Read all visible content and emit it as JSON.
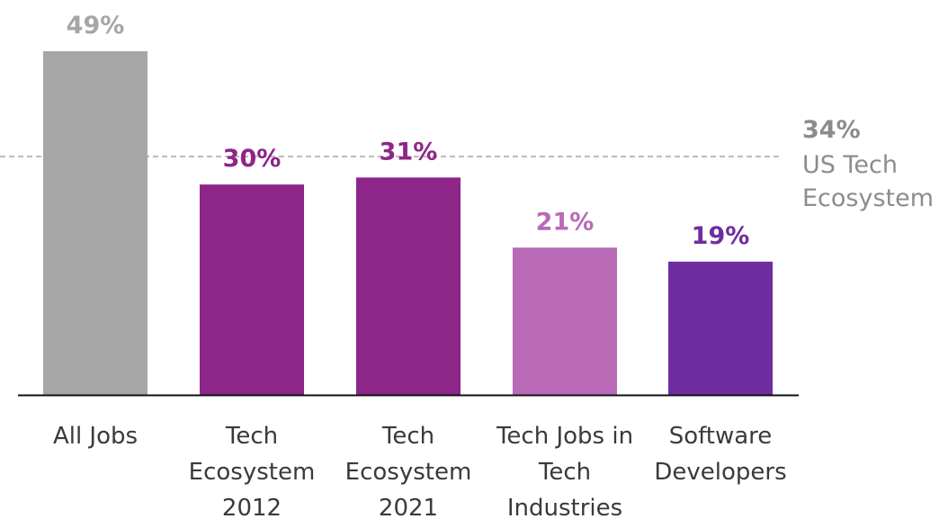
{
  "chart_data": {
    "type": "bar",
    "title": "",
    "xlabel": "",
    "ylabel": "",
    "ylim": [
      0,
      49
    ],
    "grid": false,
    "categories": [
      {
        "lines": [
          "All Jobs"
        ],
        "value": 49,
        "label": "49%",
        "color": "#a6a6a6",
        "label_color": "#a6a6a6"
      },
      {
        "lines": [
          "Tech",
          "Ecosystem",
          "2012"
        ],
        "value": 30,
        "label": "30%",
        "color": "#8e2589",
        "label_color": "#8e2589"
      },
      {
        "lines": [
          "Tech",
          "Ecosystem",
          "2021"
        ],
        "value": 31,
        "label": "31%",
        "color": "#8e2589",
        "label_color": "#8e2589"
      },
      {
        "lines": [
          "Tech Jobs in",
          "Tech",
          "Industries"
        ],
        "value": 21,
        "label": "21%",
        "color": "#b96ab7",
        "label_color": "#b96ab7"
      },
      {
        "lines": [
          "Software",
          "Developers"
        ],
        "value": 19,
        "label": "19%",
        "color": "#6e2da0",
        "label_color": "#6e2da0"
      }
    ],
    "reference_line": {
      "value": 34,
      "value_label": "34%",
      "text_lines": [
        "US Tech",
        "Ecosystem"
      ],
      "style": "dashed",
      "color": "#a6a6a6"
    }
  }
}
